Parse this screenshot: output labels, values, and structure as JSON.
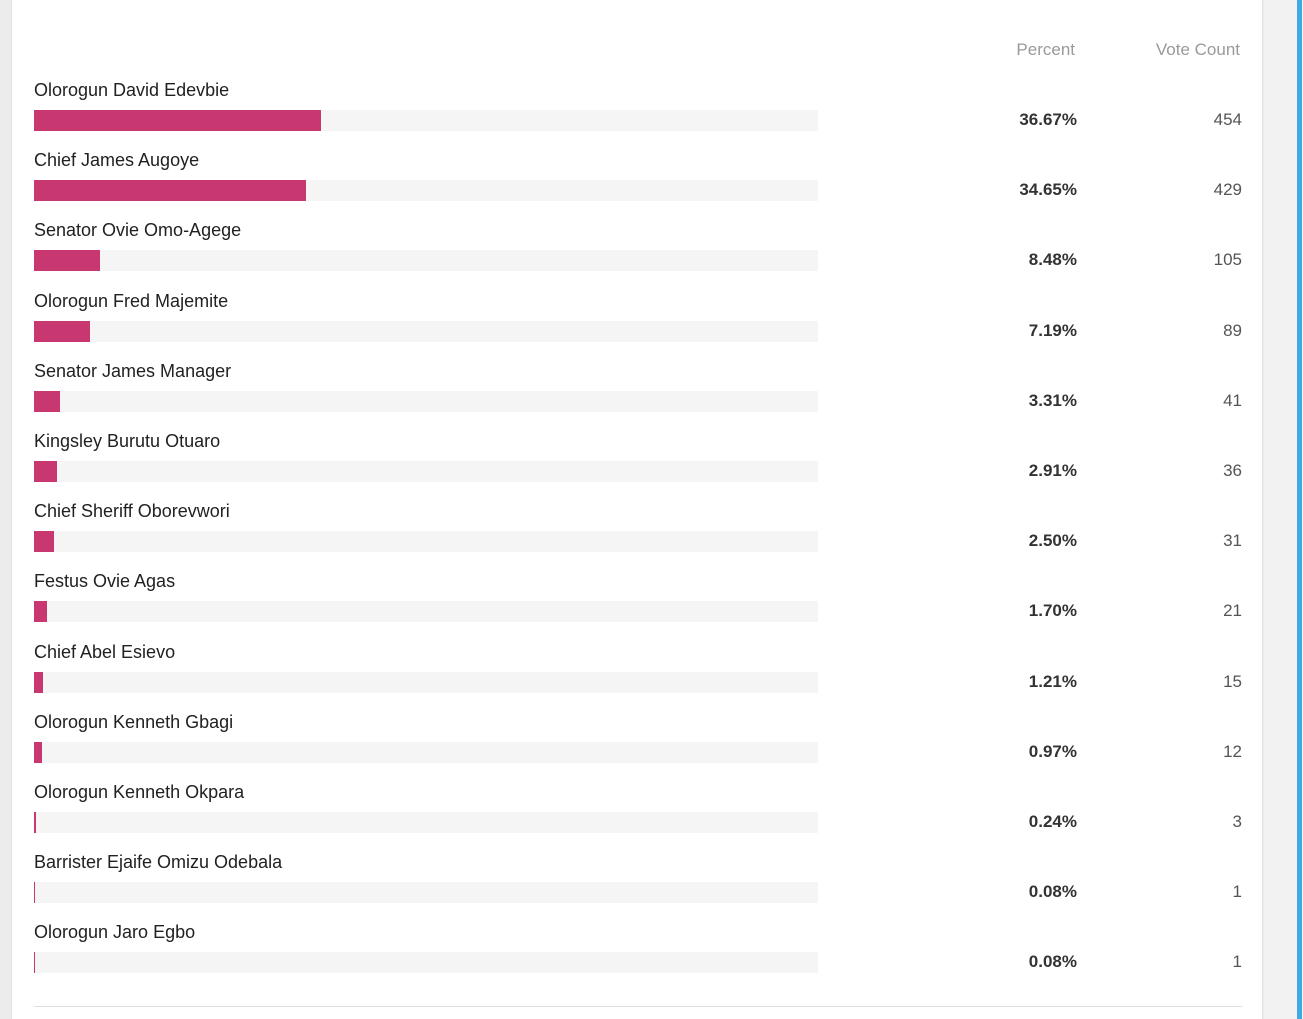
{
  "colors": {
    "bar": "#c83770",
    "track": "#f5f5f5",
    "accent": "#3fa9e6"
  },
  "chart_data": {
    "type": "bar",
    "orientation": "horizontal",
    "headers": {
      "percent": "Percent",
      "votes": "Vote Count"
    },
    "xlim": [
      0,
      100
    ],
    "grid": false,
    "rows": [
      {
        "name": "Olorogun David Edevbie",
        "percent": 36.67,
        "percent_label": "36.67%",
        "votes": "454"
      },
      {
        "name": "Chief James Augoye",
        "percent": 34.65,
        "percent_label": "34.65%",
        "votes": "429"
      },
      {
        "name": "Senator Ovie Omo-Agege",
        "percent": 8.48,
        "percent_label": "8.48%",
        "votes": "105"
      },
      {
        "name": "Olorogun Fred Majemite",
        "percent": 7.19,
        "percent_label": "7.19%",
        "votes": "89"
      },
      {
        "name": "Senator James Manager",
        "percent": 3.31,
        "percent_label": "3.31%",
        "votes": "41"
      },
      {
        "name": "Kingsley Burutu Otuaro",
        "percent": 2.91,
        "percent_label": "2.91%",
        "votes": "36"
      },
      {
        "name": "Chief Sheriff Oborevwori",
        "percent": 2.5,
        "percent_label": "2.50%",
        "votes": "31"
      },
      {
        "name": "Festus Ovie Agas",
        "percent": 1.7,
        "percent_label": "1.70%",
        "votes": "21"
      },
      {
        "name": "Chief Abel Esievo",
        "percent": 1.21,
        "percent_label": "1.21%",
        "votes": "15"
      },
      {
        "name": "Olorogun Kenneth Gbagi",
        "percent": 0.97,
        "percent_label": "0.97%",
        "votes": "12"
      },
      {
        "name": "Olorogun Kenneth Okpara",
        "percent": 0.24,
        "percent_label": "0.24%",
        "votes": "3"
      },
      {
        "name": "Barrister Ejaife Omizu Odebala",
        "percent": 0.08,
        "percent_label": "0.08%",
        "votes": "1"
      },
      {
        "name": "Olorogun Jaro Egbo",
        "percent": 0.08,
        "percent_label": "0.08%",
        "votes": "1"
      }
    ]
  }
}
